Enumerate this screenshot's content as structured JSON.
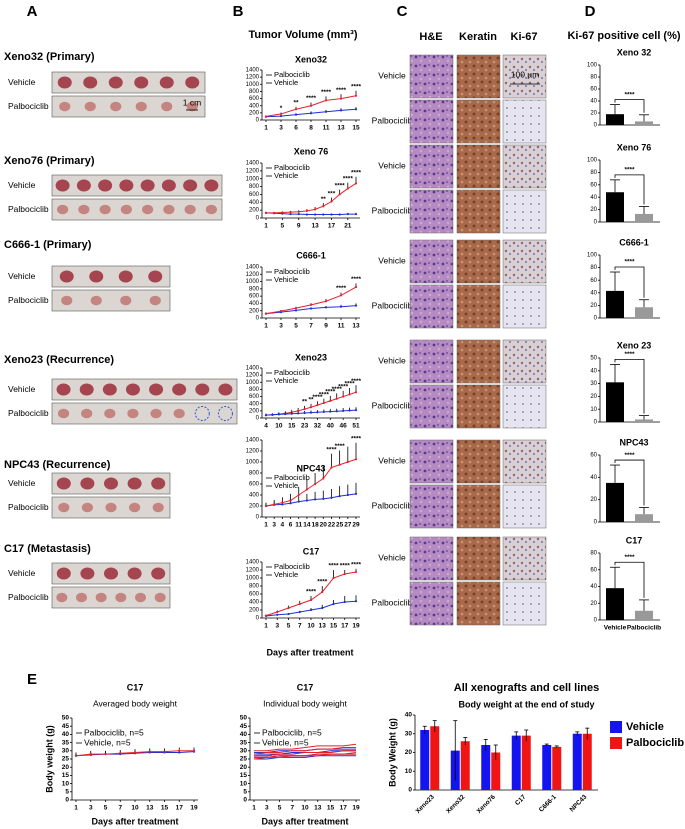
{
  "panels": [
    "A",
    "B",
    "C",
    "D",
    "E"
  ],
  "photos": [
    {
      "title": "Xeno32 (Primary)",
      "vehicle": "Vehicle",
      "palbociclib": "Palbociclib",
      "scale": "1 cm"
    },
    {
      "title": "Xeno76 (Primary)",
      "vehicle": "Vehicle",
      "palbociclib": "Palbociclib"
    },
    {
      "title": "C666-1  (Primary)",
      "vehicle": "Vehicle",
      "palbociclib": "Palbociclib"
    },
    {
      "title": "Xeno23 (Recurrence)",
      "vehicle": "Vehicle",
      "palbociclib": "Palbociclib"
    },
    {
      "title": "NPC43  (Recurrence)",
      "vehicle": "Vehicle",
      "palbociclib": "Palbociclib"
    },
    {
      "title": "C17     (Metastasis)",
      "vehicle": "Vehicle",
      "palbociclib": "Palbociclib"
    }
  ],
  "b_title": "Tumor Volume (mm³)",
  "b_xlabel": "Days after treatment",
  "ihc": {
    "columns": [
      "H&E",
      "Keratin",
      "Ki-67"
    ],
    "scale": "100 µm",
    "rows": [
      {
        "vehicle": "Vehicle",
        "palbociclib": "Palbociclib"
      },
      {
        "vehicle": "Vehicle",
        "palbociclib": "Palbociclib"
      },
      {
        "vehicle": "Vehicle",
        "palbociclib": "Palbociclib"
      },
      {
        "vehicle": "Vehicle",
        "palbociclib": "Palbociclib"
      },
      {
        "vehicle": "Vehicle",
        "palbociclib": "Palbociclib"
      },
      {
        "vehicle": "Vehicle",
        "palbociclib": "Palbociclib"
      }
    ]
  },
  "d_title": "Ki-67 positive cell (%)",
  "chart_data": [
    {
      "type": "line",
      "title": "Xeno32",
      "categories": [
        "1",
        "3",
        "6",
        "8",
        "11",
        "13",
        "15"
      ],
      "ylim": [
        0,
        1400
      ],
      "yticks": [
        0,
        200,
        400,
        600,
        800,
        1000,
        1200,
        1400
      ],
      "series": [
        {
          "name": "Palbociclib",
          "color": "#1f2fd6",
          "values": [
            90,
            110,
            150,
            190,
            230,
            270,
            300
          ],
          "errors": [
            20,
            30,
            40,
            50,
            50,
            60,
            60
          ]
        },
        {
          "name": "Vehicle",
          "color": "#e8202a",
          "values": [
            100,
            170,
            300,
            400,
            550,
            600,
            680
          ],
          "errors": [
            20,
            40,
            70,
            90,
            110,
            120,
            140
          ]
        }
      ],
      "stars": [
        null,
        "*",
        "**",
        "****",
        "****",
        "****",
        "****"
      ]
    },
    {
      "type": "line",
      "title": "Xeno 76",
      "categories": [
        "1",
        null,
        "5",
        null,
        "9",
        null,
        "13",
        null,
        "17",
        null,
        "21",
        null
      ],
      "ylim": [
        0,
        1400
      ],
      "yticks": [
        0,
        200,
        400,
        600,
        800,
        1000,
        1200,
        1400
      ],
      "series": [
        {
          "name": "Palbociclib",
          "color": "#1f2fd6",
          "values": [
            130,
            120,
            110,
            100,
            100,
            90,
            90,
            90,
            90,
            90,
            100,
            100
          ],
          "errors": [
            20,
            20,
            20,
            20,
            20,
            20,
            20,
            20,
            20,
            20,
            30,
            30
          ]
        },
        {
          "name": "Vehicle",
          "color": "#e8202a",
          "values": [
            130,
            130,
            140,
            150,
            160,
            180,
            220,
            300,
            420,
            600,
            750,
            880
          ],
          "errors": [
            20,
            20,
            30,
            30,
            40,
            50,
            60,
            80,
            100,
            120,
            150,
            170
          ]
        }
      ],
      "stars": [
        null,
        null,
        null,
        null,
        null,
        null,
        null,
        "**",
        "***",
        "****",
        "****",
        "****"
      ]
    },
    {
      "type": "line",
      "title": "C666-1",
      "categories": [
        "1",
        "3",
        "5",
        "7",
        "9",
        "11",
        "13"
      ],
      "ylim": [
        0,
        1400
      ],
      "yticks": [
        0,
        200,
        400,
        600,
        800,
        1000,
        1200,
        1400
      ],
      "series": [
        {
          "name": "Palbociclib",
          "color": "#1f2fd6",
          "values": [
            120,
            160,
            210,
            260,
            290,
            310,
            340
          ],
          "errors": [
            20,
            20,
            30,
            30,
            40,
            50,
            60
          ]
        },
        {
          "name": "Vehicle",
          "color": "#e8202a",
          "values": [
            120,
            190,
            270,
            360,
            460,
            620,
            850
          ],
          "errors": [
            20,
            30,
            40,
            50,
            60,
            80,
            100
          ]
        }
      ],
      "stars": [
        null,
        null,
        null,
        null,
        null,
        "****",
        "****"
      ]
    },
    {
      "type": "line",
      "title": "Xeno23",
      "categories": [
        "4",
        null,
        "10",
        null,
        "15",
        null,
        "23",
        null,
        "32",
        null,
        "40",
        null,
        "46",
        null,
        "51"
      ],
      "ylim": [
        0,
        1400
      ],
      "yticks": [
        0,
        200,
        400,
        600,
        800,
        1000,
        1200,
        1400
      ],
      "series": [
        {
          "name": "Palbociclib",
          "color": "#e8202a",
          "values": [
            80,
            90,
            110,
            130,
            160,
            200,
            250,
            300,
            360,
            420,
            480,
            540,
            600,
            660,
            720
          ],
          "errors": [
            40,
            40,
            50,
            60,
            70,
            80,
            90,
            100,
            110,
            120,
            140,
            150,
            160,
            180,
            200
          ]
        },
        {
          "name": "Vehicle",
          "color": "#1f2fd6",
          "values": [
            80,
            90,
            100,
            110,
            120,
            130,
            140,
            150,
            160,
            170,
            180,
            190,
            200,
            210,
            220
          ],
          "errors": [
            40,
            40,
            40,
            50,
            50,
            50,
            60,
            60,
            60,
            70,
            70,
            70,
            80,
            80,
            80
          ]
        }
      ],
      "stars": [
        null,
        null,
        null,
        null,
        null,
        null,
        "**",
        "**",
        "****",
        "****",
        "****",
        "****",
        "****",
        "****",
        "****"
      ]
    },
    {
      "type": "line",
      "title": "NPC43",
      "categories": [
        "1",
        "3",
        "4",
        "6",
        "11",
        "14",
        "18",
        "20",
        "22",
        "25",
        "27",
        "29"
      ],
      "ylim": [
        0,
        1400
      ],
      "yticks": [
        0,
        200,
        400,
        600,
        800,
        1000,
        1200,
        1400
      ],
      "series": [
        {
          "name": "Palbociclib",
          "color": "#1f2fd6",
          "values": [
            200,
            220,
            230,
            250,
            280,
            300,
            320,
            330,
            350,
            380,
            400,
            420
          ],
          "errors": [
            50,
            60,
            60,
            80,
            100,
            120,
            140,
            150,
            160,
            180,
            190,
            200
          ]
        },
        {
          "name": "Vehicle",
          "color": "#e8202a",
          "values": [
            200,
            230,
            260,
            300,
            400,
            500,
            600,
            700,
            900,
            950,
            1000,
            1050
          ],
          "errors": [
            60,
            80,
            100,
            120,
            150,
            180,
            200,
            220,
            250,
            260,
            280,
            300
          ]
        }
      ],
      "stars": [
        null,
        null,
        null,
        null,
        null,
        null,
        null,
        null,
        "****",
        "****",
        null,
        "****"
      ]
    },
    {
      "type": "line",
      "title": "C17",
      "categories": [
        "1",
        "3",
        "5",
        "7",
        "10",
        "13",
        "15",
        "17",
        "19"
      ],
      "ylim": [
        0,
        1400
      ],
      "yticks": [
        0,
        200,
        400,
        600,
        800,
        1000,
        1200,
        1400
      ],
      "series": [
        {
          "name": "Palbociclib",
          "color": "#1f2fd6",
          "values": [
            50,
            80,
            100,
            150,
            200,
            250,
            350,
            400,
            420
          ],
          "errors": [
            10,
            20,
            20,
            30,
            50,
            80,
            100,
            150,
            150
          ]
        },
        {
          "name": "Vehicle",
          "color": "#e8202a",
          "values": [
            60,
            150,
            250,
            350,
            450,
            650,
            1000,
            1100,
            1150
          ],
          "errors": [
            20,
            40,
            60,
            80,
            100,
            150,
            200,
            100,
            80
          ]
        }
      ],
      "stars": [
        null,
        null,
        null,
        null,
        "****",
        "****",
        "****",
        "****",
        "****"
      ]
    },
    {
      "type": "bar",
      "title": "Xeno 32",
      "categories": [
        null,
        null
      ],
      "colors": [
        "#000000",
        "#999999"
      ],
      "values": [
        18,
        6
      ],
      "errors": [
        16,
        11
      ],
      "annotation": "****",
      "ylim": [
        0,
        100
      ],
      "yticks": [
        0,
        20,
        40,
        60,
        80,
        100
      ]
    },
    {
      "type": "bar",
      "title": "Xeno 76",
      "categories": [
        null,
        null
      ],
      "colors": [
        "#000000",
        "#999999"
      ],
      "values": [
        48,
        13
      ],
      "errors": [
        20,
        12
      ],
      "annotation": "****",
      "ylim": [
        0,
        100
      ],
      "yticks": [
        0,
        20,
        40,
        60,
        80,
        100
      ]
    },
    {
      "type": "bar",
      "title": "C666-1",
      "categories": [
        null,
        null
      ],
      "colors": [
        "#000000",
        "#999999"
      ],
      "values": [
        43,
        17
      ],
      "errors": [
        30,
        12
      ],
      "annotation": "****",
      "ylim": [
        0,
        100
      ],
      "yticks": [
        0,
        20,
        40,
        60,
        80,
        100
      ]
    },
    {
      "type": "bar",
      "title": "Xeno 23",
      "categories": [
        null,
        null
      ],
      "colors": [
        "#000000",
        "#999999"
      ],
      "values": [
        31,
        2
      ],
      "errors": [
        14,
        3
      ],
      "annotation": "****",
      "ylim": [
        0,
        50
      ],
      "yticks": [
        0,
        10,
        20,
        30,
        40,
        50
      ]
    },
    {
      "type": "bar",
      "title": "NPC43",
      "categories": [
        null,
        null
      ],
      "colors": [
        "#000000",
        "#999999"
      ],
      "values": [
        35,
        7
      ],
      "errors": [
        16,
        6
      ],
      "annotation": "****",
      "ylim": [
        0,
        60
      ],
      "yticks": [
        0,
        20,
        40,
        60
      ]
    },
    {
      "type": "bar",
      "title": "C17",
      "categories": [
        "Vehicle",
        "Palbociclib"
      ],
      "colors": [
        "#000000",
        "#999999"
      ],
      "values": [
        38,
        11
      ],
      "errors": [
        25,
        13
      ],
      "annotation": "****",
      "ylim": [
        0,
        80
      ],
      "yticks": [
        0,
        20,
        40,
        60,
        80
      ]
    },
    {
      "type": "line",
      "title": "C17",
      "subtitle": "Averaged body weight",
      "xlabel": "Days after treatment",
      "ylabel": "Body weight (g)",
      "categories": [
        "1",
        "3",
        "5",
        "7",
        "10",
        "13",
        "15",
        "17",
        "19"
      ],
      "ylim": [
        0,
        50
      ],
      "yticks": [
        0,
        5,
        10,
        15,
        20,
        25,
        30,
        35,
        40,
        45,
        50
      ],
      "series": [
        {
          "name": "Palbociclib, n=5",
          "color": "#1f2fd6",
          "values": [
            27,
            27.5,
            28,
            28,
            28.5,
            29,
            29,
            29,
            29.5
          ],
          "errors": [
            1.5,
            1.5,
            1.5,
            1.5,
            1.5,
            1.5,
            1.5,
            1.5,
            1.5
          ]
        },
        {
          "name": "Vehicle,  n=5",
          "color": "#e8202a",
          "values": [
            27,
            28,
            28,
            28.5,
            29,
            29.5,
            29.5,
            30,
            30
          ],
          "errors": [
            2,
            2,
            2,
            2,
            2,
            2,
            2,
            2,
            2
          ]
        }
      ]
    },
    {
      "type": "multiline",
      "title": "C17",
      "subtitle": "Individual body weight",
      "xlabel": "Days after treatment",
      "categories": [
        "1",
        "3",
        "5",
        "7",
        "10",
        "13",
        "15",
        "17",
        "19"
      ],
      "ylim": [
        0,
        50
      ],
      "yticks": [
        0,
        5,
        10,
        15,
        20,
        25,
        30,
        35,
        40,
        45,
        50
      ],
      "series": [
        {
          "name": "Palbociclib, n=5",
          "color": "#1f2fd6",
          "lines": [
            [
              29,
              29,
              30,
              30,
              30,
              31,
              31,
              31,
              31
            ],
            [
              27,
              27,
              28,
              28,
              29,
              29,
              29,
              30,
              30
            ],
            [
              26,
              26,
              27,
              27,
              27,
              28,
              28,
              28,
              28
            ],
            [
              25,
              25,
              26,
              26,
              26,
              27,
              27,
              27,
              27
            ],
            [
              28,
              28,
              28,
              29,
              29,
              29,
              30,
              30,
              30
            ]
          ]
        },
        {
          "name": "Vehicle,  n=5",
          "color": "#e8202a",
          "lines": [
            [
              30,
              30,
              31,
              31,
              32,
              33,
              33,
              33,
              34
            ],
            [
              28,
              29,
              29,
              30,
              30,
              31,
              31,
              32,
              32
            ],
            [
              27,
              27,
              28,
              28,
              29,
              29,
              29,
              30,
              30
            ],
            [
              26,
              26,
              27,
              27,
              27,
              28,
              28,
              28,
              29
            ],
            [
              25,
              26,
              26,
              27,
              27,
              27,
              28,
              28,
              28
            ]
          ]
        }
      ]
    },
    {
      "type": "grouped_bar",
      "title": "All xenografts and cell lines",
      "subtitle": "Body weight at the end of study",
      "ylabel": "Body Weight (g)",
      "categories": [
        "Xeno23",
        "Xeno32",
        "Xeno76",
        "C17",
        "C666-1",
        "NPC43"
      ],
      "ylim": [
        0,
        40
      ],
      "yticks": [
        0,
        10,
        20,
        30,
        40
      ],
      "series": [
        {
          "name": "Vehicle",
          "color": "#1414f0",
          "values": [
            32,
            21,
            24,
            29,
            24,
            30
          ],
          "errors": [
            2,
            16,
            3,
            2,
            0.5,
            1
          ]
        },
        {
          "name": "Palbociclib",
          "color": "#f01414",
          "values": [
            34,
            26,
            20,
            29,
            23,
            30
          ],
          "errors": [
            3,
            2,
            4,
            3,
            0.5,
            3
          ]
        }
      ]
    }
  ]
}
